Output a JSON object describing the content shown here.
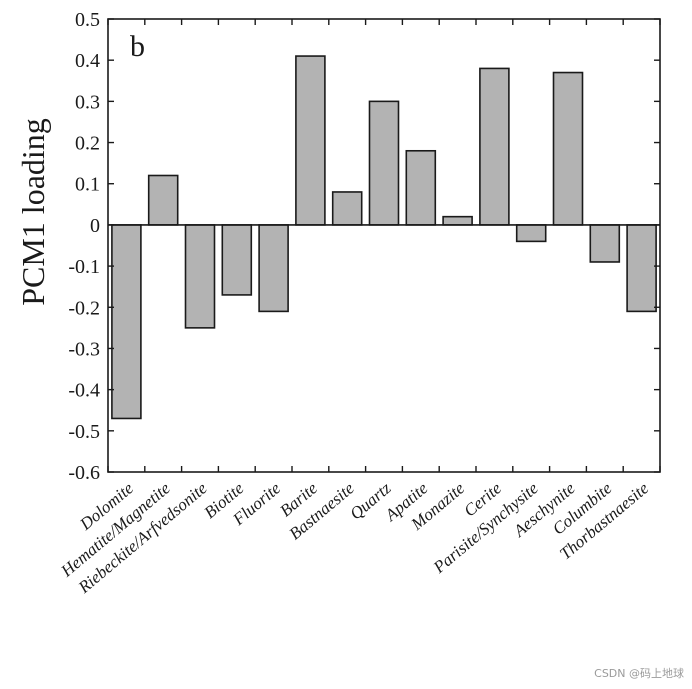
{
  "chart_data": {
    "type": "bar",
    "panel_label": "b",
    "ylabel": "PCM1 loading",
    "xlabel": "",
    "ylim": [
      -0.6,
      0.5
    ],
    "yticks": [
      "0.5",
      "0.4",
      "0.3",
      "0.2",
      "0.1",
      "0",
      "-0.1",
      "-0.2",
      "-0.3",
      "-0.4",
      "-0.5",
      "-0.6"
    ],
    "ytick_values": [
      0.5,
      0.4,
      0.3,
      0.2,
      0.1,
      0,
      -0.1,
      -0.2,
      -0.3,
      -0.4,
      -0.5,
      -0.6
    ],
    "categories": [
      "Dolomite",
      "Hematite/Magnetite",
      "Riebeckite/Arfvedsonite",
      "Biotite",
      "Fluorite",
      "Barite",
      "Bastnaesite",
      "Quartz",
      "Apatite",
      "Monazite",
      "Cerite",
      "Parisite/Synchysite",
      "Aeschynite",
      "Columbite",
      "Thorbastnaesite"
    ],
    "values": [
      -0.47,
      0.12,
      -0.25,
      -0.17,
      -0.21,
      0.41,
      0.08,
      0.3,
      0.18,
      0.02,
      0.38,
      -0.04,
      0.37,
      -0.09,
      -0.21
    ],
    "colors": {
      "bar_fill": "#b3b3b3",
      "bar_stroke": "#1a1a1a",
      "axis": "#1a1a1a"
    }
  },
  "watermark": "CSDN @码上地球"
}
